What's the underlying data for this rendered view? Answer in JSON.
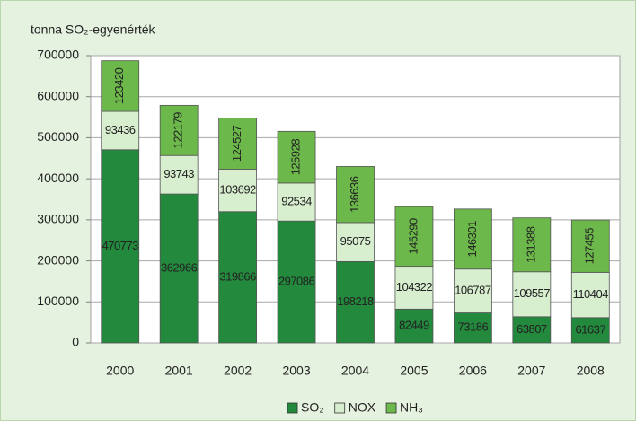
{
  "chart_data": {
    "type": "stacked_bar",
    "title": "tonna SO₂-egyenérték",
    "categories": [
      "2000",
      "2001",
      "2002",
      "2003",
      "2004",
      "2005",
      "2006",
      "2007",
      "2008"
    ],
    "series": [
      {
        "name": "SO₂",
        "color": "#23893d",
        "values": [
          470773,
          362966,
          319866,
          297086,
          198218,
          82449,
          73186,
          63807,
          61637
        ]
      },
      {
        "name": "NOX",
        "color": "#d7eecf",
        "values": [
          93436,
          93743,
          103692,
          92534,
          95075,
          104322,
          106787,
          109557,
          110404
        ]
      },
      {
        "name": "NH₃",
        "color": "#6cb84b",
        "values": [
          123420,
          122179,
          124527,
          125928,
          136636,
          145290,
          146301,
          131388,
          127455
        ]
      }
    ],
    "ylim": [
      0,
      700000
    ],
    "yticks": [
      0,
      100000,
      200000,
      300000,
      400000,
      500000,
      600000,
      700000
    ],
    "grid": true,
    "legend": "bottom"
  }
}
